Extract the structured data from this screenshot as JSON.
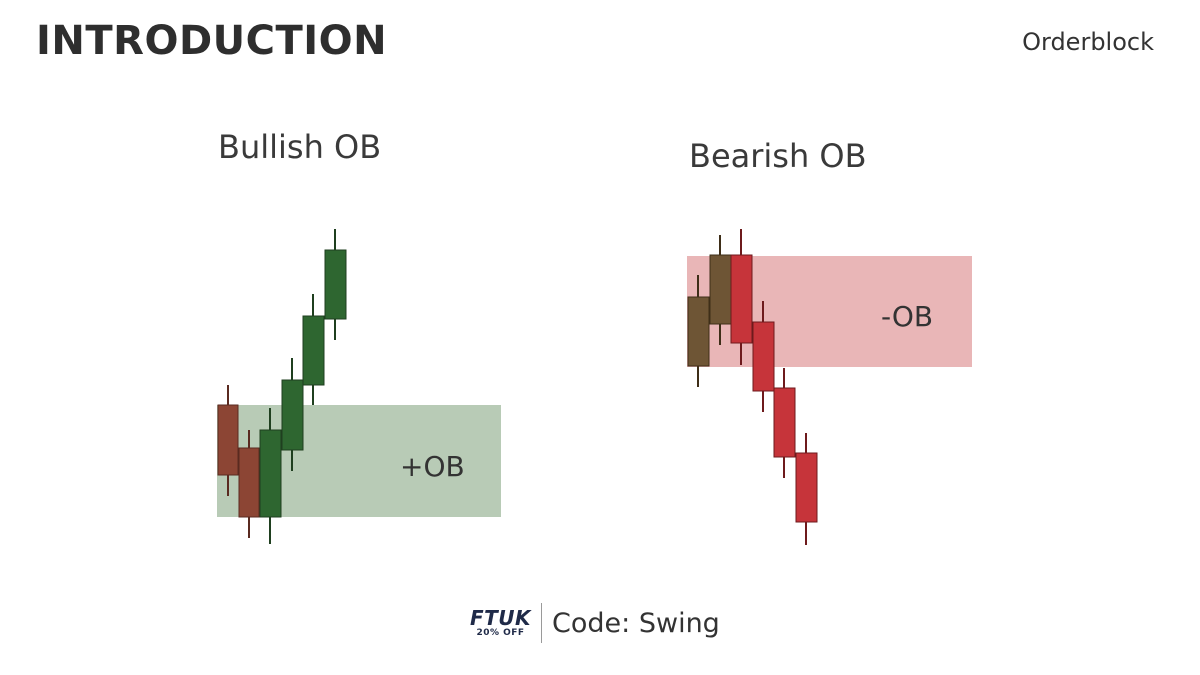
{
  "header": {
    "title": "INTRODUCTION",
    "topic": "Orderblock"
  },
  "panels": {
    "bullish": {
      "title": "Bullish OB",
      "zone_label": "+OB"
    },
    "bearish": {
      "title": "Bearish OB",
      "zone_label": "-OB"
    }
  },
  "colors": {
    "bullish_candle": "#2e6630",
    "bearish_candle_bull_panel": "#8c4534",
    "bullish_zone": "#b8cbb6",
    "bearish_zone": "#e9b6b7",
    "bearish_candle": "#c6343a",
    "brown_candle": "#6e5535"
  },
  "footer": {
    "logo_main": "FTUK",
    "logo_sub": "20% OFF",
    "code_text": "Code: Swing"
  }
}
